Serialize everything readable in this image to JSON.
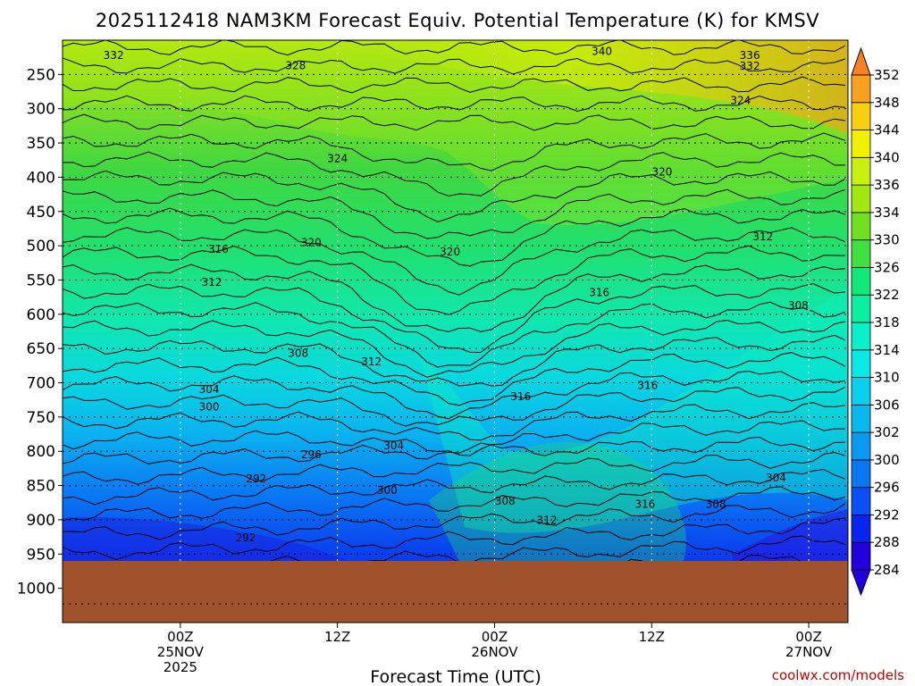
{
  "chart_data": {
    "type": "heatmap",
    "title": "2025112418 NAM3KM Forecast Equiv. Potential Temperature (K) for KMSV",
    "xlabel": "Forecast Time (UTC)",
    "ylabel": "",
    "credit": "coolwx.com/models",
    "x_range_hours": [
      -9,
      51
    ],
    "x_ticks": [
      {
        "hour": 0,
        "lines": [
          "00Z",
          "25NOV",
          "2025"
        ]
      },
      {
        "hour": 12,
        "lines": [
          "12Z"
        ]
      },
      {
        "hour": 24,
        "lines": [
          "00Z",
          "26NOV"
        ]
      },
      {
        "hour": 36,
        "lines": [
          "12Z"
        ]
      },
      {
        "hour": 48,
        "lines": [
          "00Z",
          "27NOV"
        ]
      }
    ],
    "y_range_hpa": [
      1050,
      200
    ],
    "y_ticks": [
      250,
      300,
      350,
      400,
      450,
      500,
      550,
      600,
      650,
      700,
      750,
      800,
      850,
      900,
      950,
      1000
    ],
    "surface_pressure_hpa": 960,
    "colorbar": {
      "labels": [
        284,
        288,
        292,
        296,
        300,
        302,
        306,
        310,
        314,
        318,
        322,
        326,
        330,
        334,
        336,
        340,
        344,
        348,
        352
      ],
      "colors": [
        "#2200dd",
        "#0a24f0",
        "#0a50f5",
        "#0a76f2",
        "#0a98f0",
        "#0ab8f0",
        "#0ad0f0",
        "#0ae8e8",
        "#0af0c8",
        "#0af0a0",
        "#10e878",
        "#40e040",
        "#70e020",
        "#a0e810",
        "#c8f010",
        "#f0f000",
        "#f8d010",
        "#f8a020",
        "#f88020"
      ]
    },
    "contour_labels": [
      {
        "hour": -5.1,
        "p": 222,
        "value": 332
      },
      {
        "hour": 8.8,
        "p": 237,
        "value": 328
      },
      {
        "hour": 32.2,
        "p": 216,
        "value": 340
      },
      {
        "hour": 43.5,
        "p": 222,
        "value": 336
      },
      {
        "hour": 43.5,
        "p": 238,
        "value": 332
      },
      {
        "hour": 42.8,
        "p": 288,
        "value": 324
      },
      {
        "hour": 12.0,
        "p": 373,
        "value": 324
      },
      {
        "hour": 36.8,
        "p": 392,
        "value": 320
      },
      {
        "hour": 20.6,
        "p": 509,
        "value": 320
      },
      {
        "hour": 10.0,
        "p": 495,
        "value": 320
      },
      {
        "hour": 44.5,
        "p": 487,
        "value": 312
      },
      {
        "hour": 2.9,
        "p": 505,
        "value": 316
      },
      {
        "hour": 2.4,
        "p": 553,
        "value": 312
      },
      {
        "hour": 32.0,
        "p": 568,
        "value": 316
      },
      {
        "hour": 47.2,
        "p": 587,
        "value": 308
      },
      {
        "hour": 9.0,
        "p": 657,
        "value": 308
      },
      {
        "hour": 14.6,
        "p": 669,
        "value": 312
      },
      {
        "hour": 2.2,
        "p": 710,
        "value": 304
      },
      {
        "hour": 2.2,
        "p": 735,
        "value": 300
      },
      {
        "hour": 26.0,
        "p": 720,
        "value": 316
      },
      {
        "hour": 35.7,
        "p": 704,
        "value": 316
      },
      {
        "hour": 10.0,
        "p": 805,
        "value": 296
      },
      {
        "hour": 16.3,
        "p": 792,
        "value": 304
      },
      {
        "hour": 5.8,
        "p": 840,
        "value": 292
      },
      {
        "hour": 15.8,
        "p": 857,
        "value": 300
      },
      {
        "hour": 24.8,
        "p": 873,
        "value": 308
      },
      {
        "hour": 28.0,
        "p": 901,
        "value": 312
      },
      {
        "hour": 35.5,
        "p": 877,
        "value": 316
      },
      {
        "hour": 40.9,
        "p": 877,
        "value": 308
      },
      {
        "hour": 45.5,
        "p": 839,
        "value": 304
      },
      {
        "hour": 5.0,
        "p": 926,
        "value": 292
      }
    ]
  }
}
